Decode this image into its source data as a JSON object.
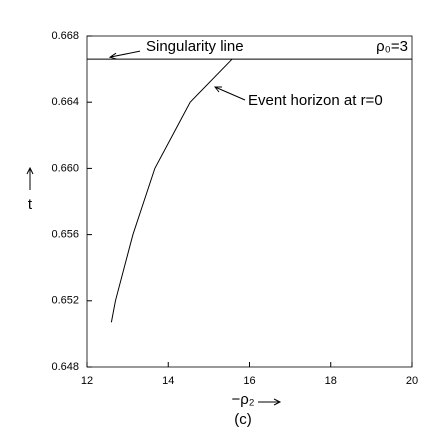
{
  "chart_data": {
    "type": "line",
    "x": [
      12.6,
      12.7,
      13.13,
      13.67,
      14.54,
      15.57
    ],
    "series": [
      {
        "color": "#000000",
        "values": [
          0.6507,
          0.652,
          0.656,
          0.66,
          0.664,
          0.6666
        ]
      }
    ],
    "singularity_t": 0.6666,
    "xlim": [
      12,
      20
    ],
    "xticks": [
      12,
      14,
      16,
      18,
      20
    ],
    "ylim": [
      0.648,
      0.668
    ],
    "yticks": [
      0.648,
      0.652,
      0.656,
      0.66,
      0.664,
      0.668
    ],
    "yticks_labels": [
      "0.648",
      "0.652",
      "0.656",
      "0.660",
      "0.664",
      "0.668"
    ],
    "xlabel": "−ρ₂",
    "ylabel": "t",
    "caption": "(c)",
    "annotations": [
      "Singularity line",
      "ρ₀=3",
      "Event horizon at r=0"
    ]
  }
}
